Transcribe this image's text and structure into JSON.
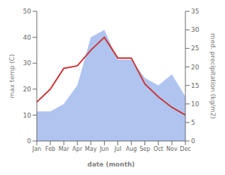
{
  "chart_data": {
    "type": "line",
    "xlabel": "date (month)",
    "ylabel": "max temp (C)",
    "y2label": "med. precipitation (kg/m2)",
    "categories": [
      "Jan",
      "Feb",
      "Mar",
      "Apr",
      "May",
      "Jun",
      "Jul",
      "Aug",
      "Sep",
      "Oct",
      "Nov",
      "Dec"
    ],
    "series": [
      {
        "type": "area",
        "color": "#b0c4f0",
        "axis": "y2",
        "values": [
          8,
          8,
          10,
          15,
          28,
          30,
          22,
          22,
          17,
          15,
          18,
          12
        ]
      },
      {
        "type": "line",
        "color": "#cc3333",
        "values": [
          15,
          20,
          28,
          29,
          35,
          40,
          32,
          32,
          22,
          17,
          13,
          10
        ]
      }
    ],
    "ylim": [
      0,
      50
    ],
    "yticks": [
      0,
      10,
      20,
      30,
      40,
      50
    ],
    "y2lim": [
      0,
      35
    ],
    "y2ticks": [
      0,
      5,
      10,
      15,
      20,
      25,
      30,
      35
    ]
  }
}
